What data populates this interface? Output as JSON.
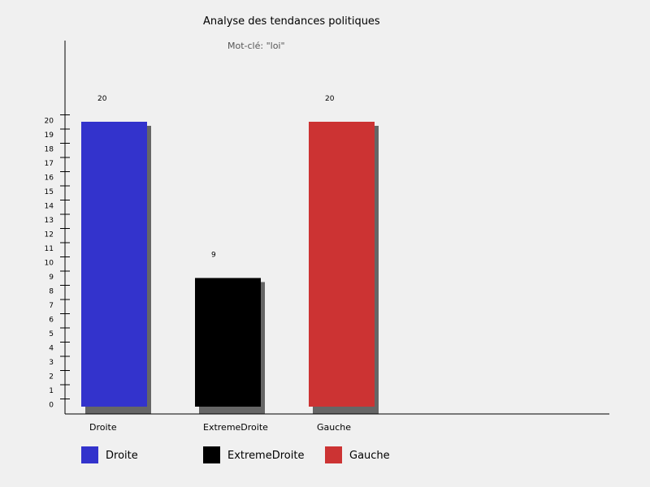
{
  "chart_data": {
    "type": "bar",
    "title": "Analyse des tendances politiques",
    "subtitle": "Mot-clé: \"loi\"",
    "categories": [
      "Droite",
      "ExtremeDroite",
      "Gauche"
    ],
    "values": [
      20,
      9,
      20
    ],
    "colors": [
      "#3333cc",
      "#000000",
      "#cc3333"
    ],
    "shadow_color": "#666666",
    "y_ticks": [
      "0",
      "1",
      "2",
      "3",
      "4",
      "5",
      "6",
      "7",
      "8",
      "9",
      "10",
      "11",
      "12",
      "13",
      "14",
      "15",
      "16",
      "17",
      "18",
      "19",
      "20"
    ],
    "ylim": [
      0,
      20
    ],
    "grid": false,
    "legend": {
      "position": "bottom",
      "items": [
        "Droite",
        "ExtremeDroite",
        "Gauche"
      ]
    }
  }
}
